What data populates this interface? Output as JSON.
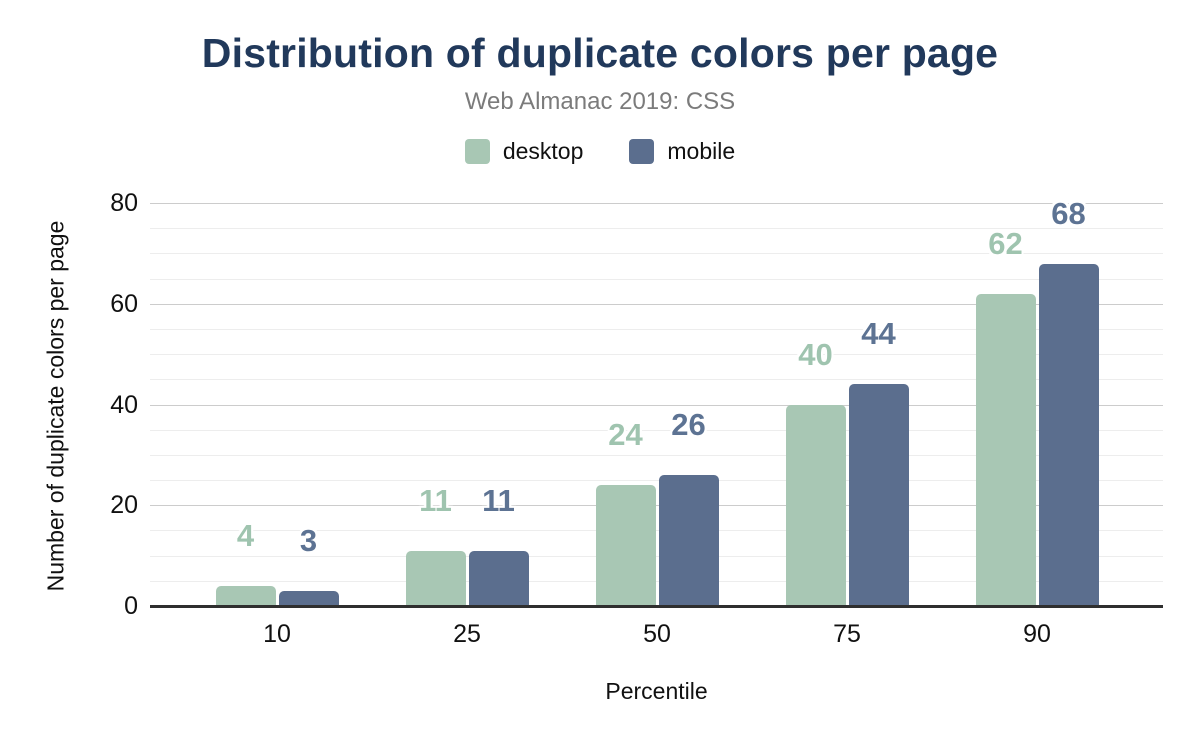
{
  "colors": {
    "title_text": "#21395b",
    "subtitle_text": "#7b7b7b",
    "axis_text": "#111111",
    "grid_major": "#cccccc",
    "grid_minor": "#ededed",
    "axis_line": "#2f2f2f",
    "desktop_bar": "#a8c7b4",
    "mobile_bar": "#5b6e8e",
    "desktop_value_label": "#9fc4af",
    "mobile_value_label": "#5d7393"
  },
  "chart_data": {
    "type": "bar",
    "title": "Distribution of duplicate colors per page",
    "subtitle": "Web Almanac 2019: CSS",
    "categories": [
      "10",
      "25",
      "50",
      "75",
      "90"
    ],
    "series": [
      {
        "name": "desktop",
        "values": [
          4,
          11,
          24,
          40,
          62
        ],
        "color": "#a8c7b4",
        "label_color": "#9fc4af"
      },
      {
        "name": "mobile",
        "values": [
          3,
          11,
          26,
          44,
          68
        ],
        "color": "#5b6e8e",
        "label_color": "#5d7393"
      }
    ],
    "xlabel": "Percentile",
    "ylabel": "Number of duplicate colors per page",
    "ylim": [
      0,
      80
    ],
    "y_ticks": [
      0,
      20,
      40,
      60,
      80
    ],
    "y_major_step": 20,
    "y_minor_step": 5,
    "grid": true,
    "legend_position": "top",
    "data_labels": true
  }
}
